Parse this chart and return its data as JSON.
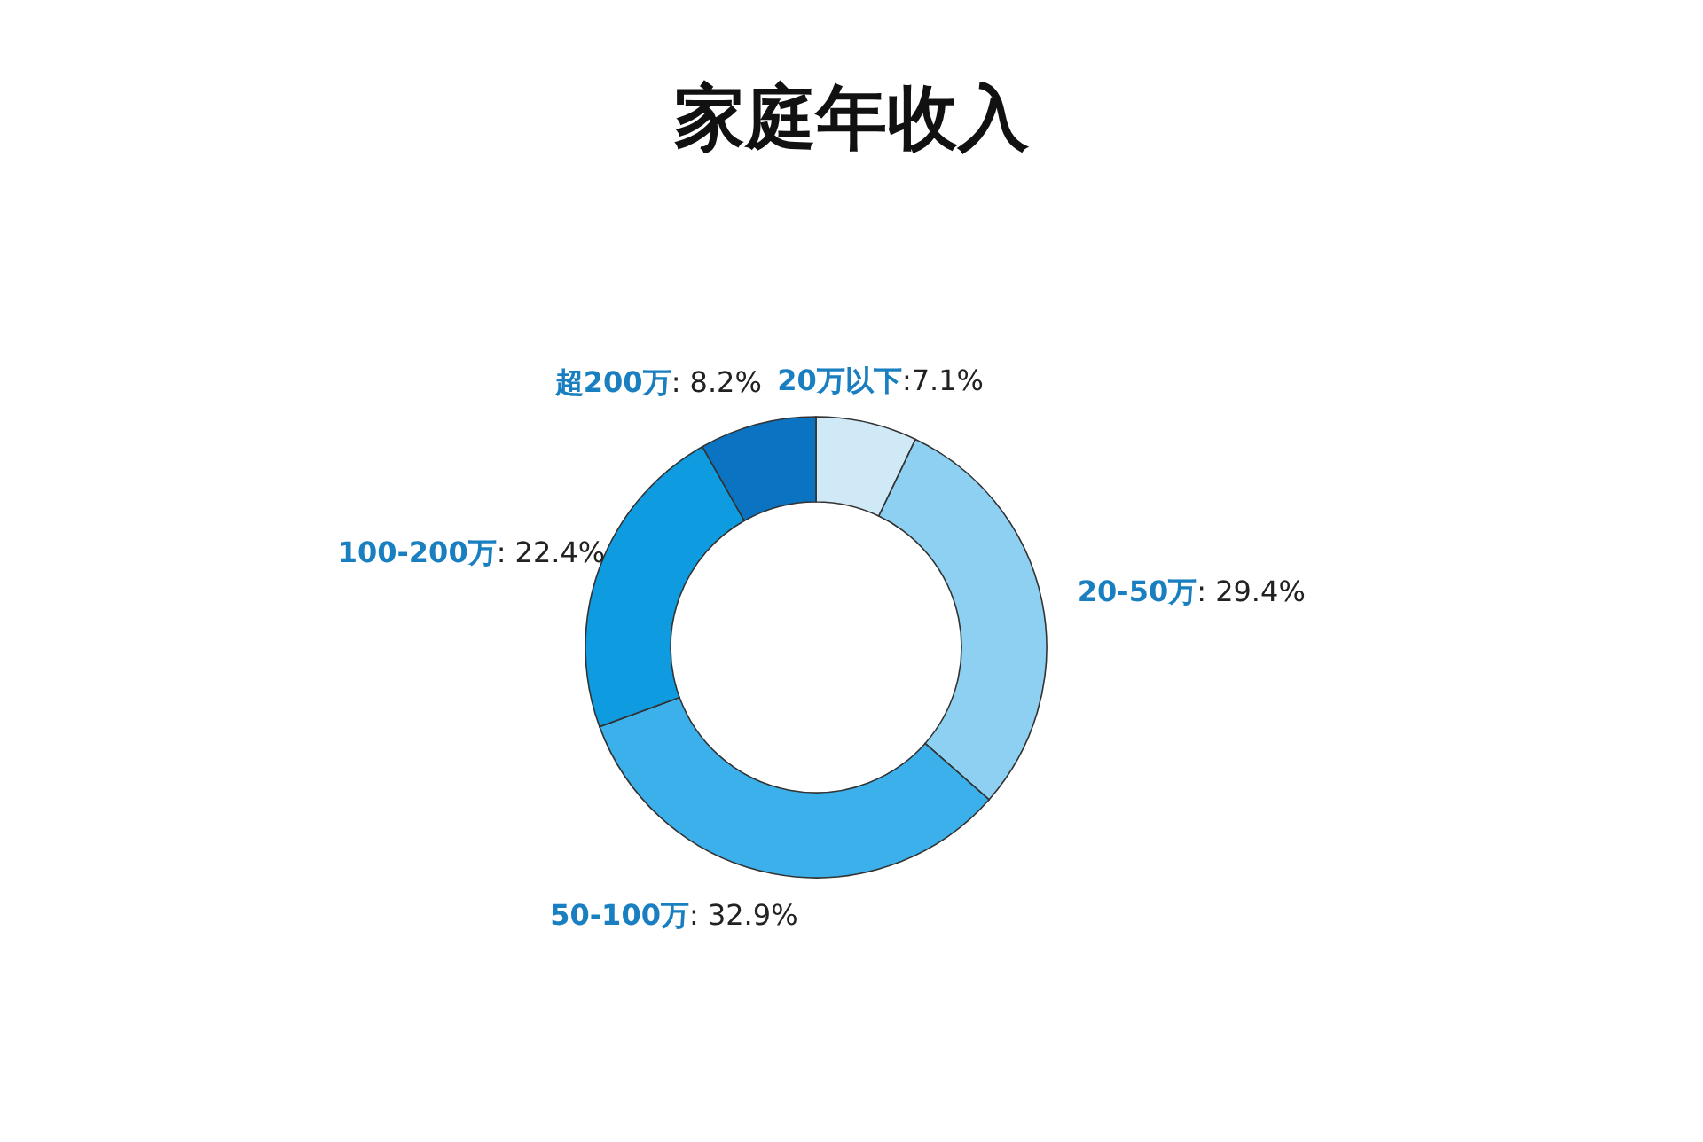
{
  "chart_data": {
    "type": "donut",
    "title": "家庭年收入",
    "categories": [
      "20万以下",
      "20-50万",
      "50-100万",
      "100-200万",
      "超200万"
    ],
    "values": [
      7.1,
      29.4,
      32.9,
      22.4,
      8.2
    ],
    "colors": [
      "#cfe9f7",
      "#8dd0f2",
      "#3bb0ea",
      "#0e9be0",
      "#0a74c2"
    ],
    "value_labels": [
      ":7.1%",
      ": 29.4%",
      ": 32.9%",
      ": 22.4%",
      ": 8.2%"
    ]
  }
}
